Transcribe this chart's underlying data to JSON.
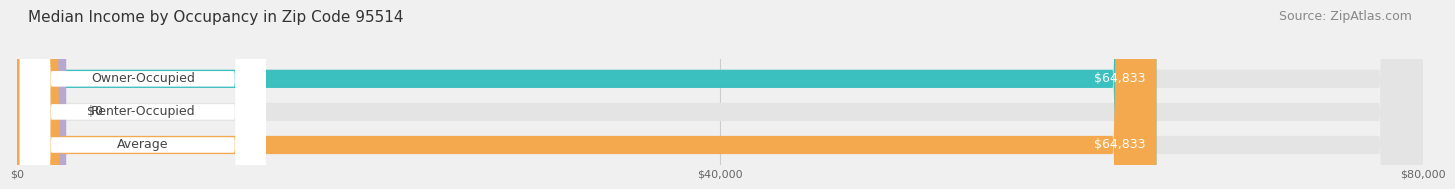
{
  "title": "Median Income by Occupancy in Zip Code 95514",
  "source": "Source: ZipAtlas.com",
  "categories": [
    "Owner-Occupied",
    "Renter-Occupied",
    "Average"
  ],
  "values": [
    64833,
    0,
    64833
  ],
  "bar_colors": [
    "#3bbfbf",
    "#b8a8d0",
    "#f5a94e"
  ],
  "value_labels": [
    "$64,833",
    "$0",
    "$64,833"
  ],
  "xlim": [
    0,
    80000
  ],
  "xticks": [
    0,
    40000,
    80000
  ],
  "xtick_labels": [
    "$0",
    "$40,000",
    "$80,000"
  ],
  "background_color": "#f0f0f0",
  "bar_background": "#e4e4e4",
  "title_fontsize": 11,
  "source_fontsize": 9,
  "label_fontsize": 9,
  "value_fontsize": 9
}
